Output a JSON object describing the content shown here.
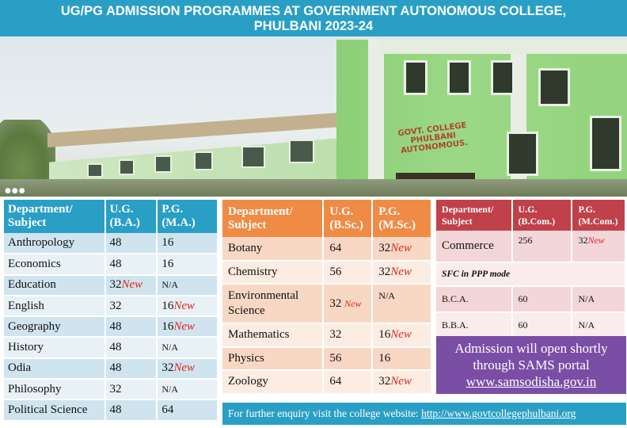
{
  "header": {
    "line1": "UG/PG ADMISSION PROGRAMMES AT GOVERNMENT  AUTONOMOUS COLLEGE,",
    "line2": "PHULBANI 2023-24"
  },
  "photo": {
    "sign_line1": "GOVT. COLLEGE",
    "sign_line2": "PHULBANI",
    "sign_line3": "AUTONOMOUS."
  },
  "colors": {
    "title_bar": "#2a9fc6",
    "arts_header": "#2a9fc6",
    "science_header": "#ef8b45",
    "commerce_header": "#c0414a",
    "admission_box": "#7b4ea6",
    "new_badge": "#e0261c"
  },
  "arts_table": {
    "headers": [
      "Department/ Subject",
      "U.G. (B.A.)",
      "P.G. (M.A.)"
    ],
    "rows": [
      {
        "subject": "Anthropology",
        "ug": "48",
        "ug_new": "",
        "pg": "16",
        "pg_new": ""
      },
      {
        "subject": "Economics",
        "ug": "48",
        "ug_new": "",
        "pg": "16",
        "pg_new": ""
      },
      {
        "subject": "Education",
        "ug": "32",
        "ug_new": "New",
        "pg": "N/A",
        "pg_new": ""
      },
      {
        "subject": "English",
        "ug": "32",
        "ug_new": "",
        "pg": "16",
        "pg_new": "New"
      },
      {
        "subject": "Geography",
        "ug": "48",
        "ug_new": "",
        "pg": "16",
        "pg_new": "New"
      },
      {
        "subject": "History",
        "ug": "48",
        "ug_new": "",
        "pg": "N/A",
        "pg_new": ""
      },
      {
        "subject": "Odia",
        "ug": "48",
        "ug_new": "",
        "pg": "32",
        "pg_new": "New"
      },
      {
        "subject": "Philosophy",
        "ug": "32",
        "ug_new": "",
        "pg": "N/A",
        "pg_new": ""
      },
      {
        "subject": "Political Science",
        "ug": "48",
        "ug_new": "",
        "pg": "64",
        "pg_new": ""
      }
    ]
  },
  "science_table": {
    "headers": [
      "Department/ Subject",
      "U.G. (B.Sc.)",
      "P.G. (M.Sc.)"
    ],
    "rows": [
      {
        "subject": "Botany",
        "ug": "64",
        "ug_new": "",
        "pg": "32",
        "pg_new": "New"
      },
      {
        "subject": "Chemistry",
        "ug": "56",
        "ug_new": "",
        "pg": "32",
        "pg_new": "New"
      },
      {
        "subject": "Environmental Science",
        "ug": "32 ",
        "ug_new": "New",
        "pg": "N/A",
        "pg_new": ""
      },
      {
        "subject": "Mathematics",
        "ug": "32",
        "ug_new": "",
        "pg": "16",
        "pg_new": "New"
      },
      {
        "subject": "Physics",
        "ug": "56",
        "ug_new": "",
        "pg": "16",
        "pg_new": ""
      },
      {
        "subject": "Zoology",
        "ug": "64",
        "ug_new": "",
        "pg": "32",
        "pg_new": "New"
      }
    ]
  },
  "commerce_table": {
    "headers": [
      "Department/ Subject",
      "U.G. (B.Com.)",
      "P.G. (M.Com.)"
    ],
    "commerce_row": {
      "subject": "Commerce",
      "ug": "256",
      "pg": "32",
      "pg_new": "New"
    },
    "sfc_label": "SFC in PPP mode",
    "sfc_rows": [
      {
        "subject": "B.C.A.",
        "ug": "60",
        "pg": "N/A"
      },
      {
        "subject": "B.B.A.",
        "ug": "60",
        "pg": "N/A"
      }
    ]
  },
  "admission": {
    "line1": "Admission will open shortly",
    "line2": "through SAMS portal",
    "link": "www.samsodisha.gov.in"
  },
  "enquiry": {
    "text": "For further enquiry visit the college website: ",
    "link": "http://www.govtcollegephulbani.org"
  }
}
